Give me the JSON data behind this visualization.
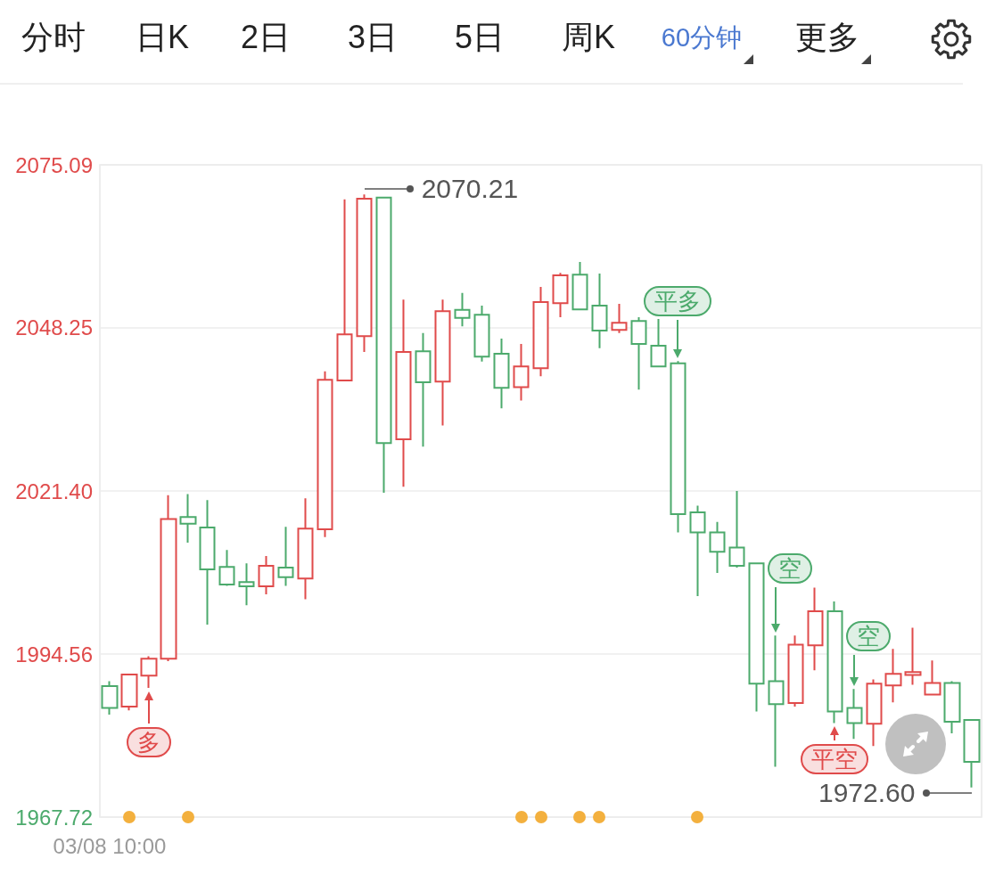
{
  "chart_data": {
    "type": "candlestick",
    "categories": [
      "03/08 10:00",
      null,
      null,
      null,
      null,
      null,
      null,
      null,
      null,
      null,
      null,
      null,
      null,
      null,
      null,
      null,
      null,
      null,
      null,
      null,
      null,
      null,
      null,
      null,
      null,
      null,
      null,
      null,
      null,
      null,
      null,
      null,
      null,
      null,
      null,
      null,
      null,
      null,
      null,
      null,
      null,
      null,
      null,
      null,
      null
    ],
    "ohlc": [
      [
        1989.3,
        1990.1,
        1984.6,
        1985.7
      ],
      [
        1985.9,
        1991.3,
        1985.3,
        1991.2
      ],
      [
        1991.0,
        1994.2,
        1989.0,
        1993.8
      ],
      [
        1993.8,
        2020.7,
        1993.4,
        2016.8
      ],
      [
        2017.1,
        2020.9,
        2012.9,
        2016.0
      ],
      [
        2015.4,
        2019.9,
        1999.4,
        2008.5
      ],
      [
        2008.9,
        2011.7,
        2005.8,
        2006.0
      ],
      [
        2006.4,
        2009.5,
        2002.6,
        2005.7
      ],
      [
        2005.7,
        2010.7,
        2004.4,
        2009.1
      ],
      [
        2008.8,
        2015.5,
        2005.8,
        2007.2
      ],
      [
        2007.0,
        2020.2,
        2003.6,
        2015.2
      ],
      [
        2015.1,
        2041.1,
        2013.8,
        2039.7
      ],
      [
        2039.6,
        2069.4,
        2039.5,
        2047.2
      ],
      [
        2046.9,
        2070.21,
        2044.3,
        2069.5
      ],
      [
        2069.7,
        2069.8,
        2021.1,
        2029.3
      ],
      [
        2029.9,
        2052.9,
        2022.1,
        2044.3
      ],
      [
        2044.4,
        2047.4,
        2028.7,
        2039.3
      ],
      [
        2039.4,
        2052.9,
        2032.2,
        2051.0
      ],
      [
        2051.2,
        2054.0,
        2048.5,
        2049.9
      ],
      [
        2050.4,
        2051.9,
        2042.7,
        2043.5
      ],
      [
        2044.0,
        2046.5,
        2035.0,
        2038.4
      ],
      [
        2038.5,
        2045.6,
        2036.3,
        2041.9
      ],
      [
        2041.6,
        2055.0,
        2040.3,
        2052.5
      ],
      [
        2052.3,
        2057.3,
        2050.0,
        2056.9
      ],
      [
        2057.0,
        2059.1,
        2051.2,
        2051.3
      ],
      [
        2051.9,
        2057.2,
        2044.9,
        2047.8
      ],
      [
        2047.9,
        2052.2,
        2047.4,
        2049.1
      ],
      [
        2049.4,
        2050.0,
        2038.1,
        2045.6
      ],
      [
        2045.3,
        2049.7,
        2041.8,
        2041.9
      ],
      [
        2042.4,
        2042.8,
        2014.6,
        2017.6
      ],
      [
        2017.9,
        2019.0,
        2004.1,
        2014.6
      ],
      [
        2014.6,
        2016.3,
        2007.9,
        2011.4
      ],
      [
        2012.1,
        2021.4,
        2008.8,
        2009.1
      ],
      [
        2009.5,
        2009.6,
        1985.1,
        1989.7
      ],
      [
        1990.1,
        1997.6,
        1976.0,
        1986.3
      ],
      [
        1986.5,
        1997.6,
        1985.9,
        1996.1
      ],
      [
        1996.0,
        2005.5,
        1991.9,
        2001.6
      ],
      [
        2001.6,
        2003.2,
        1983.2,
        1985.1
      ],
      [
        1985.7,
        1988.8,
        1980.6,
        1983.2
      ],
      [
        1983.1,
        1990.4,
        1979.4,
        1989.7
      ],
      [
        1989.4,
        1995.4,
        1986.6,
        1991.3
      ],
      [
        1991.1,
        1998.9,
        1989.5,
        1991.6
      ],
      [
        1987.9,
        1993.5,
        1987.9,
        1989.8
      ],
      [
        1989.8,
        1990.1,
        1981.5,
        1983.4
      ],
      [
        1983.7,
        1983.7,
        1972.6,
        1976.8
      ]
    ],
    "colors": [
      "#4caa6c",
      "#e04b4b",
      "#e04b4b",
      "#e04b4b",
      "#4caa6c",
      "#4caa6c",
      "#4caa6c",
      "#4caa6c",
      "#e04b4b",
      "#4caa6c",
      "#e04b4b",
      "#e04b4b",
      "#e04b4b",
      "#e04b4b",
      "#4caa6c",
      "#e04b4b",
      "#4caa6c",
      "#e04b4b",
      "#4caa6c",
      "#4caa6c",
      "#4caa6c",
      "#e04b4b",
      "#e04b4b",
      "#e04b4b",
      "#4caa6c",
      "#4caa6c",
      "#e04b4b",
      "#4caa6c",
      "#4caa6c",
      "#4caa6c",
      "#4caa6c",
      "#4caa6c",
      "#4caa6c",
      "#4caa6c",
      "#4caa6c",
      "#e04b4b",
      "#e04b4b",
      "#4caa6c",
      "#4caa6c",
      "#e04b4b",
      "#e04b4b",
      "#e04b4b",
      "#e04b4b",
      "#4caa6c",
      "#4caa6c"
    ],
    "ylim": [
      1967.72,
      2075.09
    ],
    "yticks": [
      1967.72,
      1994.56,
      {
        "value": 2021.4,
        "label": "2021.40"
      },
      2048.25,
      2075.09
    ],
    "grid": "y",
    "annotations": [
      "分时",
      "日K",
      "2日",
      "3日",
      "5日",
      "周K",
      "60分钟",
      "更多",
      "多",
      "平多",
      "空",
      "空",
      "平空",
      "2070.21",
      "1972.60"
    ]
  }
}
